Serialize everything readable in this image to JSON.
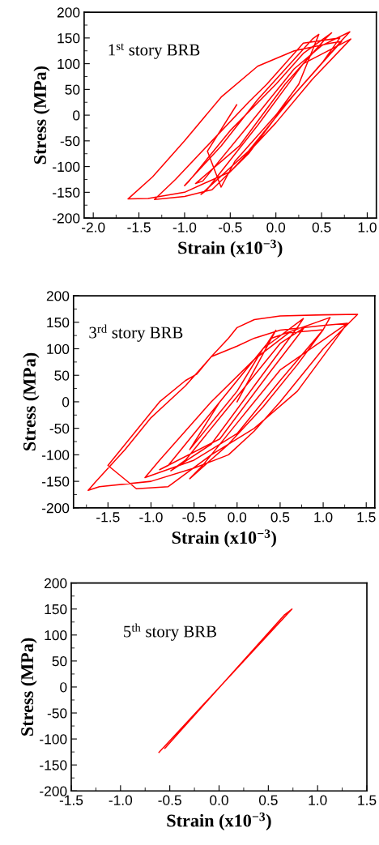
{
  "chart_data": [
    {
      "type": "line",
      "xlabel": "Strain (x10$^{−3}$)",
      "ylabel": "Stress (MPa)",
      "annotations": [
        "1$^{st}$ story BRB"
      ],
      "xlim": [
        -2.1,
        1.1
      ],
      "ylim": [
        -200,
        200
      ],
      "xticks": [
        {
          "value": -2.0,
          "label": "-2.0"
        },
        {
          "value": -1.5,
          "label": "-1.5"
        },
        {
          "value": -1.0,
          "label": "-1.0"
        },
        {
          "value": -0.5,
          "label": "-0.5"
        },
        {
          "value": 0.0,
          "label": "0.0"
        },
        {
          "value": 0.5,
          "label": "0.5"
        },
        {
          "value": 1.0,
          "label": "1.0"
        }
      ],
      "yticks": [
        -200,
        -150,
        -100,
        -50,
        0,
        50,
        100,
        150,
        200
      ],
      "marker": "none",
      "line_style": "solid",
      "series": [
        {
          "color": "#ff0000",
          "x": [
            0,
            0.25,
            0.47,
            0.4,
            -0.2,
            -0.6,
            -1.0,
            -0.95,
            -0.5,
            0.0,
            0.3,
            0.61,
            0.55,
            0.1,
            -0.4,
            -0.88,
            -0.8,
            -0.3,
            0.2,
            0.5,
            0.81,
            0.72,
            0.2,
            -0.3,
            -0.82,
            -0.76,
            -0.2,
            0.3,
            0.82,
            0.4,
            0.0,
            -0.5,
            -1.0,
            -1.4,
            -1.62,
            -1.35,
            -1.0,
            -0.6,
            -0.2,
            0.2,
            0.6,
            0.72,
            0.6,
            0.1,
            -0.3,
            -0.7,
            -1.0,
            -1.33,
            -1.1,
            -0.7,
            -0.3,
            -0.1,
            0.3,
            0.7,
            0.5,
            0.0,
            -0.45,
            -0.6,
            -0.75,
            -0.43
          ],
          "values": [
            0,
            60,
            157,
            148,
            30,
            -60,
            -137,
            -128,
            -30,
            60,
            120,
            160,
            150,
            60,
            -60,
            -133,
            -128,
            -20,
            90,
            135,
            162,
            145,
            40,
            -70,
            -154,
            -146,
            -20,
            100,
            148,
            70,
            -15,
            -110,
            -150,
            -162,
            -163,
            -120,
            -50,
            35,
            95,
            125,
            140,
            143,
            120,
            20,
            -75,
            -145,
            -158,
            -164,
            -125,
            -50,
            25,
            60,
            140,
            150,
            100,
            0,
            -90,
            -140,
            -70,
            20
          ]
        }
      ]
    },
    {
      "type": "line",
      "xlabel": "Strain (x10$^{−3}$)",
      "ylabel": "Stress (MPa)",
      "annotations": [
        "3$^{rd}$ story BRB"
      ],
      "xlim": [
        -1.9,
        1.6
      ],
      "ylim": [
        -200,
        200
      ],
      "xticks": [
        {
          "value": -1.5,
          "label": "-1.5"
        },
        {
          "value": -1.0,
          "label": "-1.0"
        },
        {
          "value": -0.5,
          "label": "-0.5"
        },
        {
          "value": 0.0,
          "label": "0.0"
        },
        {
          "value": 0.5,
          "label": "0.5"
        },
        {
          "value": 1.0,
          "label": "1.0"
        },
        {
          "value": 1.5,
          "label": "1.5"
        }
      ],
      "yticks": [
        -200,
        -150,
        -100,
        -50,
        0,
        50,
        100,
        150,
        200
      ],
      "marker": "none",
      "line_style": "solid",
      "series": [
        {
          "color": "#ff0000",
          "x": [
            0,
            0.3,
            0.45,
            0.35,
            -0.2,
            -0.55,
            -0.5,
            0,
            0.3,
            0.77,
            0.7,
            0.2,
            -0.3,
            -0.77,
            -0.6,
            0,
            0.5,
            0.78,
            0.4,
            -0.2,
            -0.9,
            -0.8,
            -0.2,
            0.4,
            1.08,
            1.0,
            0.5,
            0,
            -0.5,
            -1.07,
            -0.9,
            -0.3,
            0.2,
            0.6,
            1.0,
            0.7,
            0.3,
            -0.1,
            -0.55,
            -0.4,
            0.0,
            0.5,
            1.28,
            1.2,
            0.7,
            0.2,
            -0.3,
            -0.8,
            -1.17,
            -1.5,
            -1.2,
            -0.9,
            -0.6,
            -0.47,
            -0.3,
            -0.1,
            0.0,
            0.2,
            0.5,
            1.0,
            1.4,
            1.0,
            0.5,
            0.2,
            -0.1,
            -0.5,
            -1.0,
            -1.6,
            -1.73,
            -1.65,
            -1.3,
            -1.0,
            -0.6,
            -0.3,
            0.0,
            0.2,
            0.5,
            1.0,
            1.28
          ],
          "values": [
            0,
            90,
            135,
            110,
            0,
            -90,
            -80,
            20,
            100,
            157,
            140,
            30,
            -80,
            -130,
            -110,
            10,
            110,
            140,
            60,
            -70,
            -128,
            -120,
            0,
            120,
            159,
            136,
            40,
            -60,
            -110,
            -143,
            -110,
            0,
            80,
            130,
            136,
            70,
            -10,
            -80,
            -145,
            -120,
            -40,
            60,
            148,
            130,
            20,
            -50,
            -100,
            -160,
            -164,
            -120,
            -60,
            0,
            40,
            52,
            85,
            120,
            140,
            155,
            162,
            164,
            165,
            100,
            0,
            -55,
            -100,
            -125,
            -150,
            -160,
            -167,
            -152,
            -90,
            -30,
            30,
            85,
            105,
            120,
            135,
            144,
            148
          ]
        }
      ]
    },
    {
      "type": "line",
      "xlabel": "Strain (x10$^{−3}$)",
      "ylabel": "Stress (MPa)",
      "annotations": [
        "5$^{th}$ story BRB"
      ],
      "xlim": [
        -1.5,
        1.5
      ],
      "ylim": [
        -200,
        200
      ],
      "xticks": [
        {
          "value": -1.5,
          "label": "-1.5"
        },
        {
          "value": -1.0,
          "label": "-1.0"
        },
        {
          "value": -0.5,
          "label": "-0.5"
        },
        {
          "value": 0.0,
          "label": "0.0"
        },
        {
          "value": 0.5,
          "label": "0.5"
        },
        {
          "value": 1.0,
          "label": "1.0"
        },
        {
          "value": 1.5,
          "label": "1.5"
        }
      ],
      "yticks": [
        -200,
        -150,
        -100,
        -50,
        0,
        50,
        100,
        150,
        200
      ],
      "marker": "none",
      "line_style": "solid",
      "series": [
        {
          "color": "#ff0000",
          "x": [
            -0.61,
            0.74,
            0.66,
            -0.55
          ],
          "values": [
            -126,
            150,
            138,
            -118
          ]
        }
      ]
    }
  ]
}
